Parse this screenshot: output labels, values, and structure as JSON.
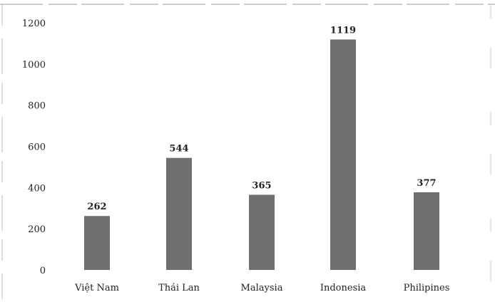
{
  "chart_data": {
    "type": "bar",
    "title": "",
    "xlabel": "",
    "ylabel": "",
    "categories": [
      "Việt Nam",
      "Thái Lan",
      "Malaysia",
      "Indonesia",
      "Philipines"
    ],
    "values": [
      262,
      544,
      365,
      1119,
      377
    ],
    "data_labels": [
      "262",
      "544",
      "365",
      "1119",
      "377"
    ],
    "ylim": [
      0,
      1200
    ],
    "yticks": [
      0,
      200,
      400,
      600,
      800,
      1000,
      1200
    ],
    "grid": false,
    "legend": "none",
    "bar_color": "#6f6f6f"
  }
}
